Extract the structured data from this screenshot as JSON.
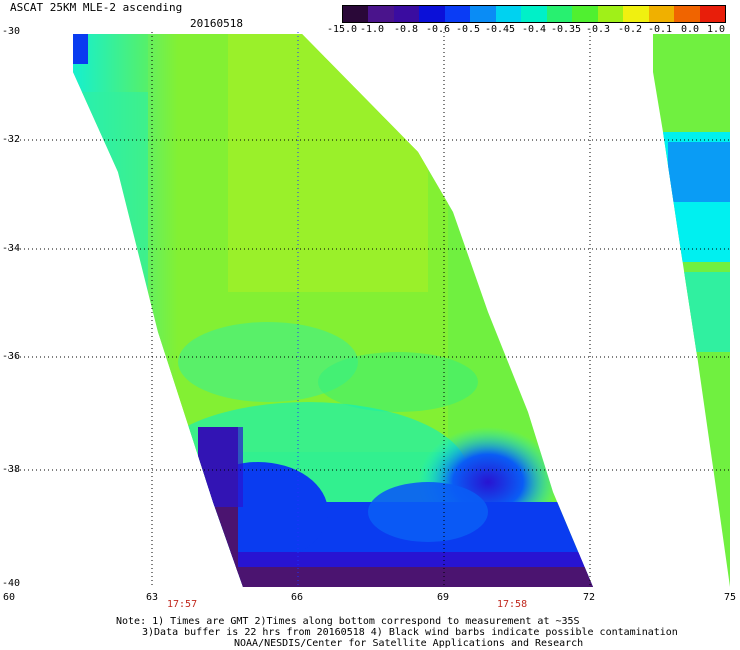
{
  "header": {
    "title": "ASCAT 25KM MLE-2 ascending",
    "date": "20160518"
  },
  "colorbar": {
    "ticks": [
      "-15.0",
      "-1.0",
      "-0.8",
      "-0.6",
      "-0.5",
      "-0.45",
      "-0.4",
      "-0.35",
      "-0.3",
      "-0.2",
      "-0.1",
      "0.0",
      "1.0"
    ],
    "colors": [
      "#2a0838",
      "#4a148c",
      "#3a0ca0",
      "#0b10d8",
      "#0a3cf5",
      "#0a8cf5",
      "#00d2f0",
      "#00f0c8",
      "#28f070",
      "#50f030",
      "#a0f018",
      "#f0f010",
      "#f0b000",
      "#f06400",
      "#e81e0a"
    ]
  },
  "map": {
    "lat_labels": [
      "-30",
      "-32",
      "-34",
      "-36",
      "-38",
      "-40"
    ],
    "lon_labels": [
      "60",
      "63",
      "66",
      "69",
      "72",
      "75"
    ],
    "time_labels": [
      "17:57",
      "17:58"
    ],
    "colors": {
      "purple": "#4b1470",
      "deep_blue": "#2814d2",
      "blue": "#0a3cf0",
      "light_blue": "#0a9cf5",
      "cyan": "#00f0f0",
      "teal": "#00f0b0",
      "green": "#30f060",
      "light_green": "#70f040",
      "yellow_green": "#a8f028"
    }
  },
  "notes": [
    "Note: 1) Times are GMT 2)Times along bottom correspond to measurement at ~35S",
    "3)Data buffer is 22 hrs from 20160518 4) Black wind barbs indicate possible contamination",
    "NOAA/NESDIS/Center for Satellite Applications and Research"
  ]
}
